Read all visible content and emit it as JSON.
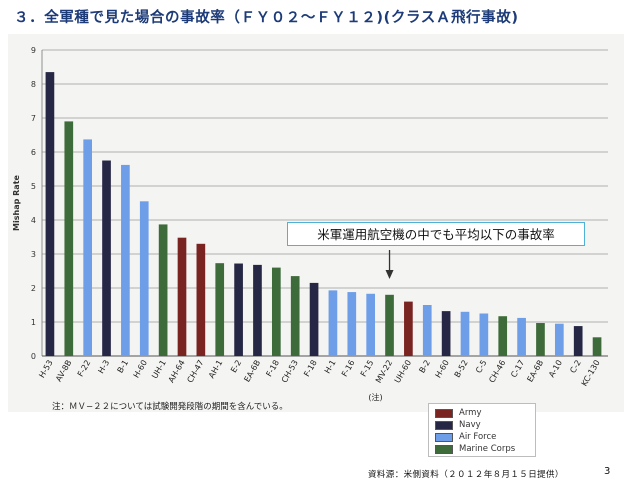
{
  "title": "３．全軍種で見た場合の事故率（ＦＹ０２〜ＦＹ１２)(クラスＡ飛行事故)",
  "callout": "米軍運用航空機の中でも平均以下の事故率",
  "note": "注：ＭＶ−２２については試験開発段階の期間を含んでいる。",
  "source": "資料源：米側資料（２０１２年８月１５日提供）",
  "page_number": "3",
  "colors": {
    "Army": "#7a2422",
    "Navy": "#262744",
    "Air Force": "#6e9ee8",
    "Marine Corps": "#3e6b3a",
    "title": "#1d3b78",
    "callout_border": "#4fb0d8"
  },
  "chart_data": {
    "type": "bar",
    "title": "",
    "xlabel": "",
    "ylabel": "Mishap Rate",
    "ylim": [
      0,
      9
    ],
    "yticks": [
      "0",
      "1",
      "2",
      "3",
      "4",
      "5",
      "6",
      "7",
      "8",
      "9"
    ],
    "grid": true,
    "legend_position": "bottom-right",
    "legend": [
      "Army",
      "Navy",
      "Air Force",
      "Marine Corps"
    ],
    "annotation": "(注)",
    "categories": [
      "H-53",
      "AV-8B",
      "F-22",
      "H-3",
      "B-1",
      "H-60",
      "UH-1",
      "AH-64",
      "CH-47",
      "AH-1",
      "E-2",
      "EA-6B",
      "F-18",
      "CH-53",
      "F-18",
      "H-1",
      "F-16",
      "F-15",
      "MV-22",
      "UH-60",
      "B-2",
      "H-60",
      "B-52",
      "C-5",
      "CH-46",
      "C-17",
      "EA-6B",
      "A-10",
      "C-2",
      "KC-130"
    ],
    "values": [
      8.35,
      6.9,
      6.37,
      5.75,
      5.62,
      4.55,
      3.87,
      3.48,
      3.3,
      2.73,
      2.72,
      2.68,
      2.6,
      2.35,
      2.15,
      1.93,
      1.88,
      1.83,
      1.8,
      1.6,
      1.5,
      1.32,
      1.3,
      1.25,
      1.17,
      1.12,
      0.97,
      0.95,
      0.88,
      0.55
    ],
    "services": [
      "Navy",
      "Marine Corps",
      "Air Force",
      "Navy",
      "Air Force",
      "Air Force",
      "Marine Corps",
      "Army",
      "Army",
      "Marine Corps",
      "Navy",
      "Navy",
      "Marine Corps",
      "Marine Corps",
      "Navy",
      "Air Force",
      "Air Force",
      "Air Force",
      "Marine Corps",
      "Army",
      "Air Force",
      "Navy",
      "Air Force",
      "Air Force",
      "Marine Corps",
      "Air Force",
      "Marine Corps",
      "Air Force",
      "Navy",
      "Marine Corps"
    ]
  }
}
